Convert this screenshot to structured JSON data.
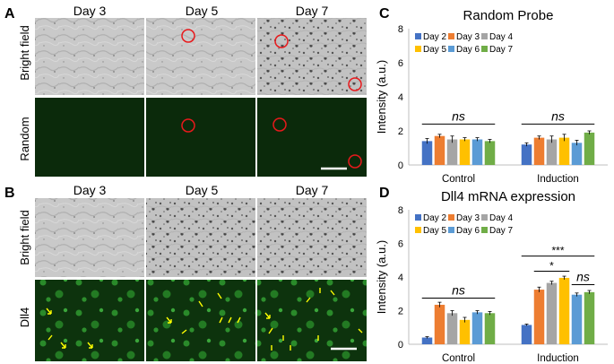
{
  "panels": {
    "A": {
      "label": "A",
      "columns": [
        "Day 3",
        "Day 5",
        "Day 7"
      ],
      "row_labels": [
        "Bright field",
        "Random"
      ]
    },
    "B": {
      "label": "B",
      "columns": [
        "Day 3",
        "Day 5",
        "Day 7"
      ],
      "row_labels": [
        "Bright field",
        "Dll4"
      ]
    },
    "C": {
      "label": "C"
    },
    "D": {
      "label": "D"
    }
  },
  "colors": {
    "Day 2": "#4472c4",
    "Day 3": "#ed7d31",
    "Day 4": "#a5a5a5",
    "Day 5": "#ffc000",
    "Day 6": "#5b9bd5",
    "Day 7": "#70ad47",
    "marker_circle": "#e8191c",
    "arrow": "#ffff00",
    "fluor_bg": "#0b2a0b"
  },
  "chart_data": [
    {
      "type": "bar",
      "title": "Random Probe",
      "ylabel": "Intensity (a.u.)",
      "xlabel": "",
      "categories": [
        "Control",
        "Induction"
      ],
      "ylim": [
        0,
        8
      ],
      "yticks": [
        "0",
        "2",
        "4",
        "6",
        "8"
      ],
      "legend_position": "top-left",
      "series": [
        {
          "name": "Day 2",
          "values": [
            1.4,
            1.2
          ],
          "errors": [
            0.15,
            0.1
          ]
        },
        {
          "name": "Day 3",
          "values": [
            1.7,
            1.6
          ],
          "errors": [
            0.1,
            0.1
          ]
        },
        {
          "name": "Day 4",
          "values": [
            1.5,
            1.5
          ],
          "errors": [
            0.2,
            0.2
          ]
        },
        {
          "name": "Day 5",
          "values": [
            1.5,
            1.6
          ],
          "errors": [
            0.1,
            0.2
          ]
        },
        {
          "name": "Day 6",
          "values": [
            1.5,
            1.3
          ],
          "errors": [
            0.1,
            0.15
          ]
        },
        {
          "name": "Day 7",
          "values": [
            1.4,
            1.9
          ],
          "errors": [
            0.1,
            0.1
          ]
        }
      ],
      "annotations": [
        {
          "text": "ns",
          "group": "Control"
        },
        {
          "text": "ns",
          "group": "Induction"
        }
      ]
    },
    {
      "type": "bar",
      "title": "Dll4 mRNA expression",
      "ylabel": "Intensity (a.u.)",
      "xlabel": "",
      "categories": [
        "Control",
        "Induction"
      ],
      "ylim": [
        0,
        8
      ],
      "yticks": [
        "0",
        "2",
        "4",
        "6",
        "8"
      ],
      "legend_position": "top-left",
      "series": [
        {
          "name": "Day 2",
          "values": [
            0.4,
            1.15
          ],
          "errors": [
            0.05,
            0.05
          ]
        },
        {
          "name": "Day 3",
          "values": [
            2.35,
            3.25
          ],
          "errors": [
            0.15,
            0.15
          ]
        },
        {
          "name": "Day 4",
          "values": [
            1.85,
            3.65
          ],
          "errors": [
            0.15,
            0.1
          ]
        },
        {
          "name": "Day 5",
          "values": [
            1.45,
            3.95
          ],
          "errors": [
            0.15,
            0.1
          ]
        },
        {
          "name": "Day 6",
          "values": [
            1.9,
            2.95
          ],
          "errors": [
            0.1,
            0.1
          ]
        },
        {
          "name": "Day 7",
          "values": [
            1.85,
            3.1
          ],
          "errors": [
            0.1,
            0.1
          ]
        }
      ],
      "annotations": [
        {
          "text": "ns",
          "group": "Control"
        },
        {
          "text": "***",
          "group": "Induction"
        },
        {
          "text": "*",
          "group": "Induction"
        },
        {
          "text": "ns",
          "group": "Induction"
        }
      ]
    }
  ]
}
